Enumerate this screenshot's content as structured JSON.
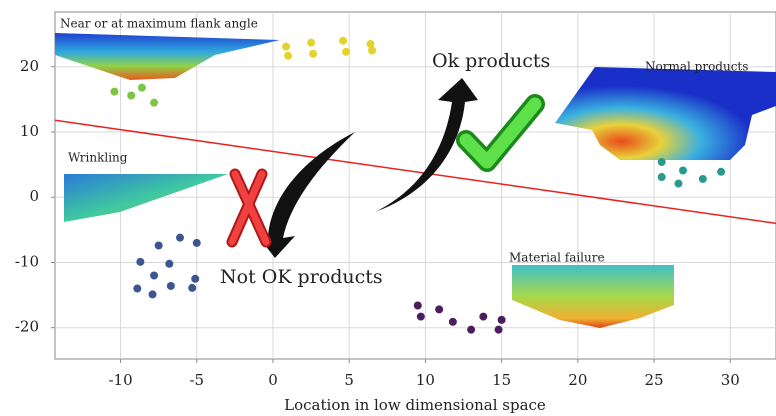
{
  "chart_data": {
    "type": "scatter",
    "x_label": "Location in low dimensional space",
    "xlim": [
      -14.3,
      33
    ],
    "ylim": [
      -24.8,
      28.4
    ],
    "xticks": [
      -10,
      -5,
      0,
      5,
      10,
      15,
      20,
      25,
      30
    ],
    "yticks": [
      -20,
      -10,
      0,
      10,
      20
    ],
    "grid": true,
    "annotations": [
      "Near or at maximum flank angle",
      "Ok products",
      "Normal products",
      "Wrinkling",
      "Material failure",
      "Not OK products"
    ],
    "series": [
      {
        "type": "scatter",
        "color": "#e3d32b",
        "x": [
          0.86,
          0.99,
          2.5,
          2.63,
          4.6,
          4.8,
          6.4,
          6.5
        ],
        "values": [
          23.1,
          21.7,
          23.7,
          22.0,
          24.0,
          22.3,
          23.5,
          22.5
        ]
      },
      {
        "type": "scatter",
        "color": "#7cc644",
        "x": [
          -10.4,
          -9.3,
          -8.6,
          -7.8
        ],
        "values": [
          16.2,
          15.6,
          16.8,
          14.5
        ]
      },
      {
        "type": "scatter",
        "color": "#2a9a8c",
        "x": [
          25.5,
          25.5,
          26.6,
          26.9,
          28.2,
          29.4
        ],
        "values": [
          5.4,
          3.1,
          2.1,
          4.1,
          2.8,
          3.9
        ]
      },
      {
        "type": "scatter",
        "color": "#3d5690",
        "x": [
          -7.5,
          -6.1,
          -5.0,
          -8.7,
          -6.8,
          -7.8,
          -5.1,
          -8.9,
          -6.7,
          -7.9,
          -5.3
        ],
        "values": [
          -7.4,
          -6.2,
          -7.0,
          -9.9,
          -10.2,
          -12.0,
          -12.5,
          -14.0,
          -13.6,
          -14.9,
          -13.9
        ]
      },
      {
        "type": "scatter",
        "color": "#4a1d5e",
        "x": [
          9.5,
          9.7,
          10.9,
          11.8,
          13.0,
          13.8,
          14.8,
          15.0
        ],
        "values": [
          -16.6,
          -18.3,
          -17.2,
          -19.1,
          -20.3,
          -18.3,
          -20.3,
          -18.8
        ]
      },
      {
        "type": "line",
        "color": "#e8231e",
        "x": [
          -14.3,
          33
        ],
        "values": [
          11.8,
          -4.0
        ]
      }
    ]
  }
}
